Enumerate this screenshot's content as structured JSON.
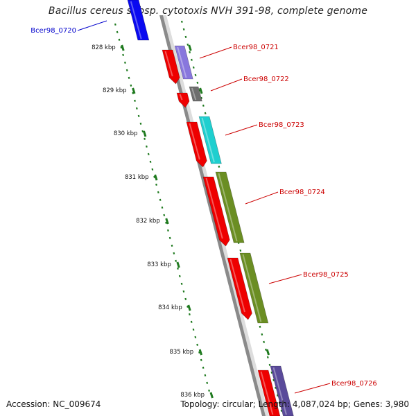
{
  "title": "Bacillus cereus subsp. cytotoxis NVH 391-98, complete genome",
  "colors": {
    "backbone": "#8a8a8a",
    "tick": "#1f7a1f",
    "label_red": "#cc0000",
    "label_blue": "#0000cc",
    "forward_cds": "#ee0000"
  },
  "kbp_labels": [
    "828 kbp",
    "829 kbp",
    "830 kbp",
    "831 kbp",
    "832 kbp",
    "833 kbp",
    "834 kbp",
    "835 kbp",
    "836 kbp"
  ],
  "genes": [
    {
      "name": "Bcer98_0720",
      "color": "#0000cc",
      "feature_color": "#0a0af0"
    },
    {
      "name": "Bcer98_0721",
      "color": "#cc0000",
      "feature_color": "#8877dd"
    },
    {
      "name": "Bcer98_0722",
      "color": "#cc0000",
      "feature_color": "#6e6e6e"
    },
    {
      "name": "Bcer98_0723",
      "color": "#cc0000",
      "feature_color": "#1fcfcf"
    },
    {
      "name": "Bcer98_0724",
      "color": "#cc0000",
      "feature_color": "#6b8e23"
    },
    {
      "name": "Bcer98_0725",
      "color": "#cc0000",
      "feature_color": "#6b8e23"
    },
    {
      "name": "Bcer98_0726",
      "color": "#cc0000",
      "feature_color": "#5a4a9a"
    }
  ],
  "footer": {
    "accession": "Accession: NC_009674",
    "summary": "Topology: circular; Length: 4,087,024 bp; Genes: 3,980"
  }
}
